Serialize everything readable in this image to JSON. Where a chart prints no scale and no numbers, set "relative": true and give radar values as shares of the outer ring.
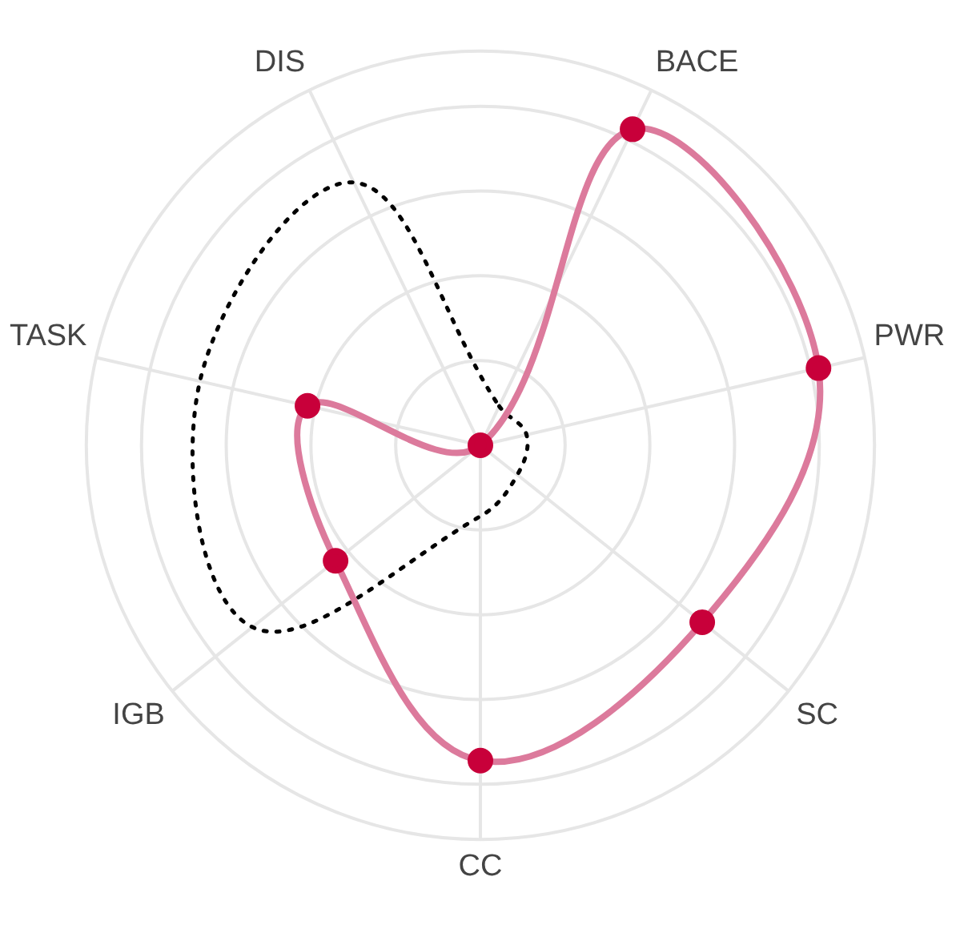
{
  "chart_data": {
    "type": "radar",
    "relative": true,
    "categories": [
      "BACE",
      "PWR",
      "SC",
      "CC",
      "IGB",
      "TASK",
      "DIS"
    ],
    "series": [
      {
        "color": "#dc7a9c",
        "values": [
          0.89,
          0.88,
          0.72,
          0.8,
          0.47,
          0.45,
          0
        ],
        "marker": "circle",
        "line_style": "solid"
      },
      {
        "color": "#000000",
        "values": [
          0.11,
          0.12,
          0.12,
          0.18,
          0.74,
          0.73,
          0.74
        ],
        "marker": "none",
        "line_style": "dotted"
      }
    ],
    "grid": true,
    "legend": false
  }
}
